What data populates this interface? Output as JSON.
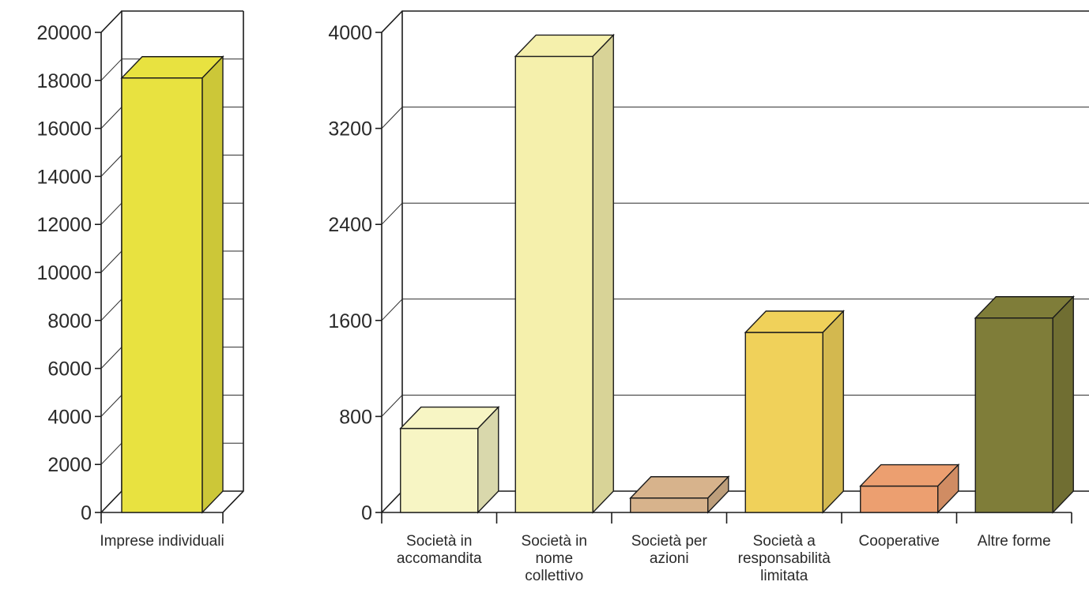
{
  "chart_data": [
    {
      "type": "bar",
      "title": "",
      "xlabel": "",
      "ylabel": "",
      "ylim": [
        0,
        20000
      ],
      "yticks": [
        "0",
        "2000",
        "4000",
        "6000",
        "8000",
        "10000",
        "12000",
        "14000",
        "16000",
        "18000",
        "20000"
      ],
      "categories": [
        [
          "Imprese individuali"
        ]
      ],
      "values": [
        18100
      ],
      "colors": [
        "#e8e240"
      ],
      "grid": true,
      "legend": "none"
    },
    {
      "type": "bar",
      "title": "",
      "xlabel": "",
      "ylabel": "",
      "ylim": [
        0,
        4000
      ],
      "yticks": [
        "0",
        "800",
        "1600",
        "2400",
        "3200",
        "4000"
      ],
      "categories": [
        [
          "Società in",
          "accomandita"
        ],
        [
          "Società in",
          "nome",
          "collettivo"
        ],
        [
          "Società per",
          "azioni"
        ],
        [
          "Società a",
          "responsabilità",
          "limitata"
        ],
        [
          "Cooperative"
        ],
        [
          "Altre forme"
        ]
      ],
      "values": [
        700,
        3800,
        120,
        1500,
        220,
        1620
      ],
      "colors": [
        "#f7f5c4",
        "#f5f0ac",
        "#d7b38c",
        "#f0d15a",
        "#ec9f70",
        "#7f7d39"
      ],
      "grid": true,
      "legend": "none"
    }
  ]
}
